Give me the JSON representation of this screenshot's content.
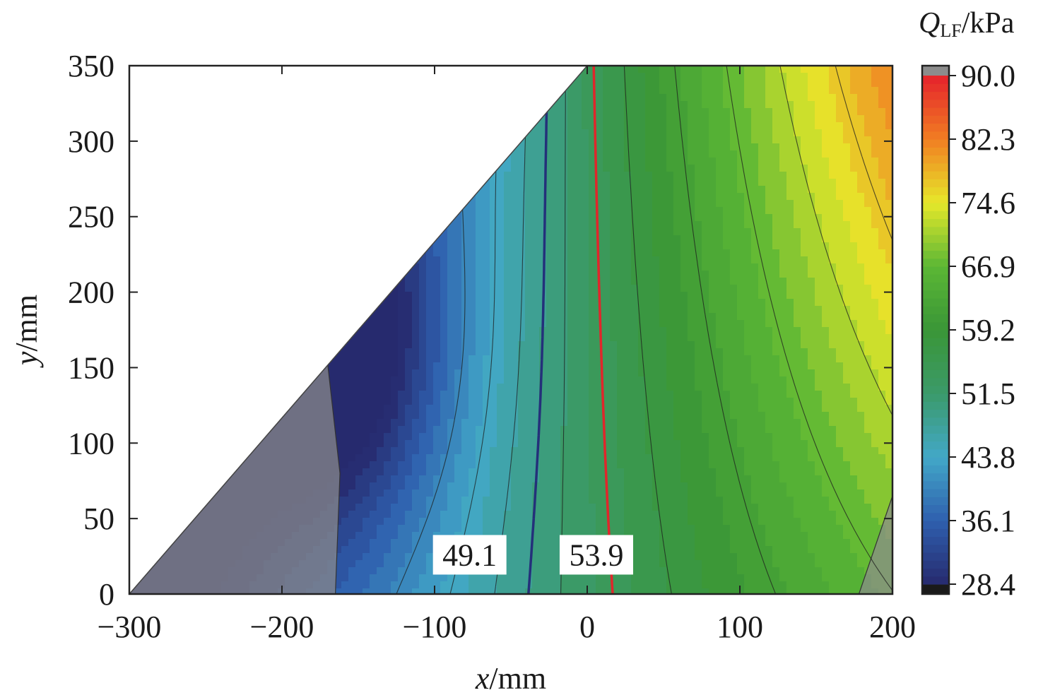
{
  "chart_data": {
    "type": "heatmap",
    "subtype": "filled-contour",
    "title": "",
    "xlabel": {
      "var": "x",
      "unit": "/mm"
    },
    "ylabel": {
      "var": "y",
      "unit": "/mm"
    },
    "xlim": [
      -300,
      200
    ],
    "ylim": [
      0,
      350
    ],
    "x_ticks": [
      -300,
      -200,
      -100,
      0,
      100,
      200
    ],
    "x_tick_labels": [
      "−300",
      "−200",
      "−100",
      "0",
      "100",
      "200"
    ],
    "y_ticks": [
      0,
      50,
      100,
      150,
      200,
      250,
      300,
      350
    ],
    "y_tick_labels": [
      "0",
      "50",
      "100",
      "150",
      "200",
      "250",
      "300",
      "350"
    ],
    "domain_boundary": {
      "from": [
        -300,
        0
      ],
      "to": [
        0,
        350
      ]
    },
    "colorbar": {
      "title_var": "Q",
      "title_sub": "LF",
      "title_unit": "/kPa",
      "min": 28.4,
      "max": 90.0,
      "ticks": [
        28.4,
        36.1,
        43.8,
        51.5,
        59.2,
        66.9,
        74.6,
        82.3,
        90.0
      ],
      "tick_labels": [
        "28.4",
        "36.1",
        "43.8",
        "51.5",
        "59.2",
        "66.9",
        "74.6",
        "82.3",
        "90.0"
      ],
      "stops": [
        {
          "v": 28.4,
          "color": "#262a6e"
        },
        {
          "v": 36.1,
          "color": "#2f5fae"
        },
        {
          "v": 43.8,
          "color": "#42a8c8"
        },
        {
          "v": 51.5,
          "color": "#3b9a6a"
        },
        {
          "v": 59.2,
          "color": "#3a9637"
        },
        {
          "v": 66.9,
          "color": "#5bb735"
        },
        {
          "v": 74.6,
          "color": "#e6e82a"
        },
        {
          "v": 82.3,
          "color": "#f17e22"
        },
        {
          "v": 90.0,
          "color": "#e5222c"
        }
      ],
      "over_color": "#8c8c8c",
      "under_color": "#1a1a1a"
    },
    "highlighted_contours": [
      {
        "value": 49.1,
        "label": "49.1",
        "color": "#24307a"
      },
      {
        "value": 53.9,
        "label": "53.9",
        "color": "#e0262b"
      }
    ],
    "shaded_regions": "grey overlay near the lower-left corner and the lower-right corner"
  }
}
